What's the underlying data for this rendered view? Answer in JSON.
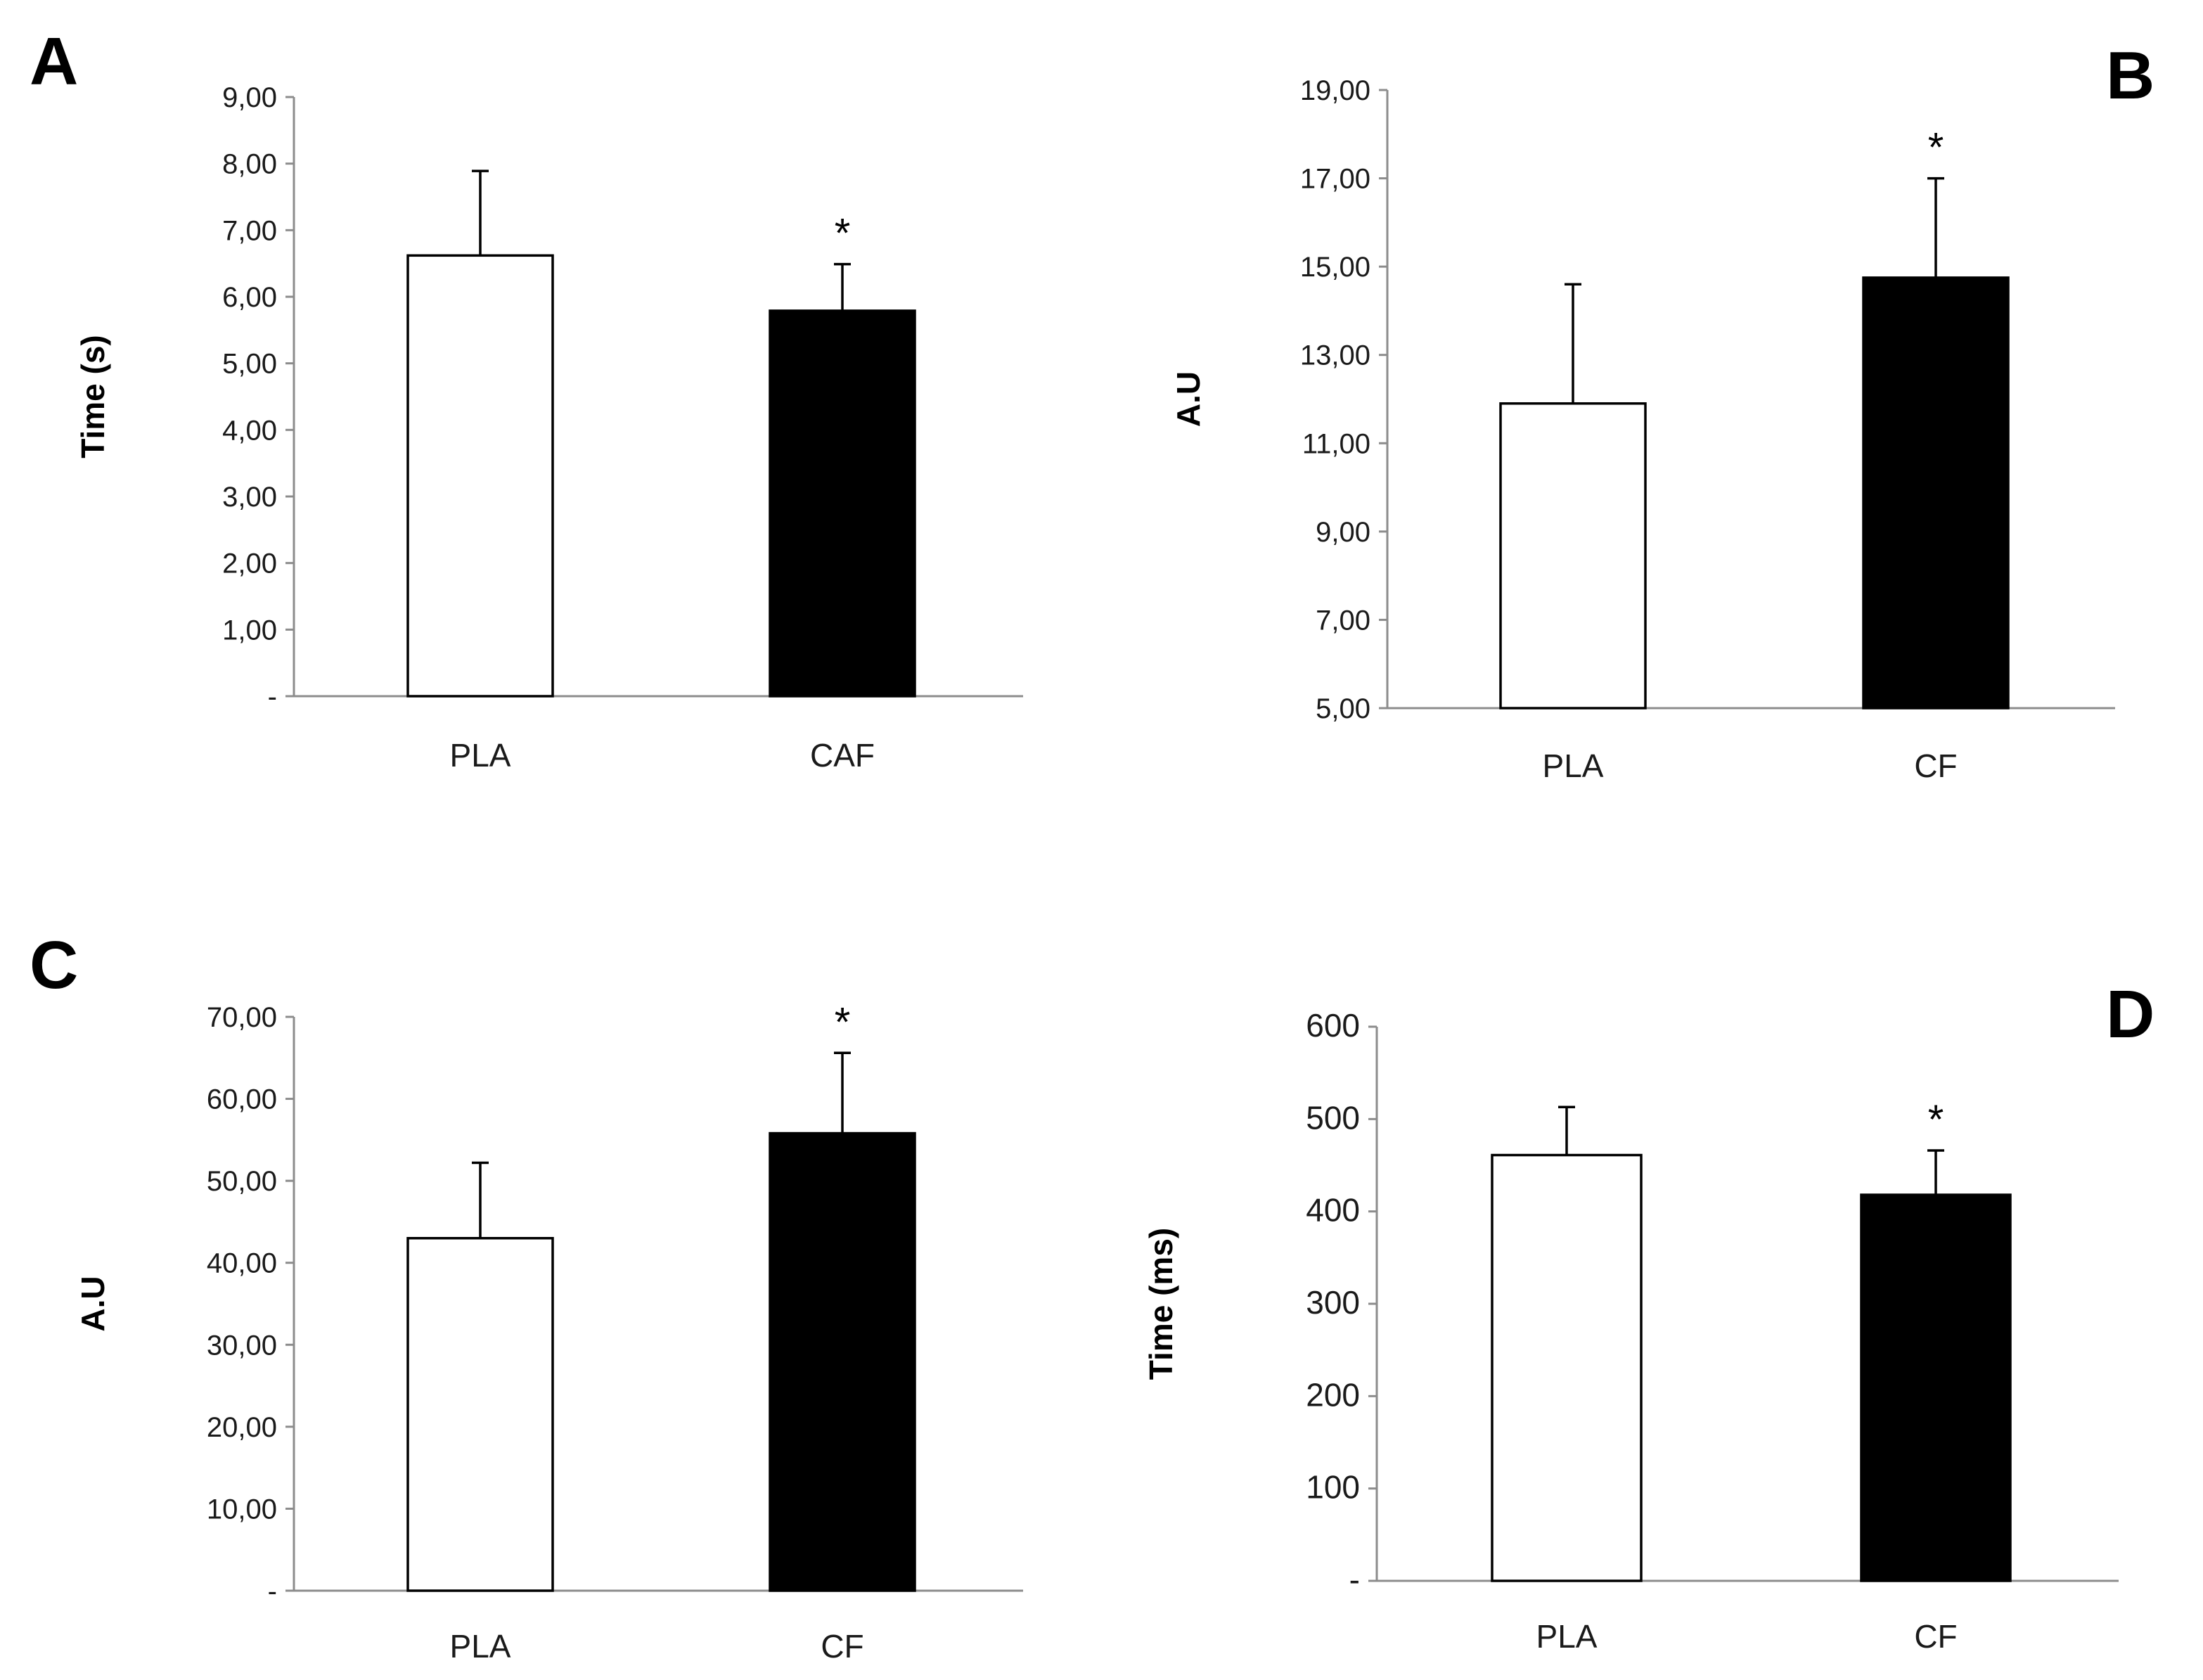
{
  "chart_data": [
    {
      "panel": "A",
      "type": "bar",
      "ylabel": "Time (s)",
      "xlabel": "",
      "ylim": [
        0,
        9
      ],
      "ytick_values": [
        0,
        1,
        2,
        3,
        4,
        5,
        6,
        7,
        8,
        9
      ],
      "ytick_labels": [
        "-",
        "1,00",
        "2,00",
        "3,00",
        "4,00",
        "5,00",
        "6,00",
        "7,00",
        "8,00",
        "9,00"
      ],
      "categories": [
        "PLA",
        "CAF"
      ],
      "values": [
        6.62,
        5.79
      ],
      "errors": [
        1.27,
        0.7
      ],
      "fills": [
        "#ffffff",
        "#000000"
      ],
      "significance": [
        "",
        "*"
      ]
    },
    {
      "panel": "B",
      "type": "bar",
      "ylabel": "A.U",
      "xlabel": "",
      "ylim": [
        5,
        19
      ],
      "ytick_values": [
        5,
        7,
        9,
        11,
        13,
        15,
        17,
        19
      ],
      "ytick_labels": [
        "5,00",
        "7,00",
        "9,00",
        "11,00",
        "13,00",
        "15,00",
        "17,00",
        "19,00"
      ],
      "categories": [
        "PLA",
        "CF"
      ],
      "values": [
        11.9,
        14.75
      ],
      "errors": [
        2.7,
        2.25
      ],
      "fills": [
        "#ffffff",
        "#000000"
      ],
      "significance": [
        "",
        "*"
      ]
    },
    {
      "panel": "C",
      "type": "bar",
      "ylabel": "A.U",
      "xlabel": "",
      "ylim": [
        0,
        70
      ],
      "ytick_values": [
        0,
        10,
        20,
        30,
        40,
        50,
        60,
        70
      ],
      "ytick_labels": [
        "-",
        "10,00",
        "20,00",
        "30,00",
        "40,00",
        "50,00",
        "60,00",
        "70,00"
      ],
      "categories": [
        "PLA",
        "CF"
      ],
      "values": [
        43.0,
        55.8
      ],
      "errors": [
        9.2,
        9.8
      ],
      "fills": [
        "#ffffff",
        "#000000"
      ],
      "significance": [
        "",
        "*"
      ]
    },
    {
      "panel": "D",
      "type": "bar",
      "ylabel": "Time (ms)",
      "xlabel": "",
      "ylim": [
        0,
        600
      ],
      "ytick_values": [
        0,
        100,
        200,
        300,
        400,
        500,
        600
      ],
      "ytick_labels": [
        "-",
        "100",
        "200",
        "300",
        "400",
        "500",
        "600"
      ],
      "categories": [
        "PLA",
        "CF"
      ],
      "values": [
        461,
        418
      ],
      "errors": [
        52,
        48
      ],
      "fills": [
        "#ffffff",
        "#000000"
      ],
      "significance": [
        "",
        "*"
      ]
    }
  ]
}
